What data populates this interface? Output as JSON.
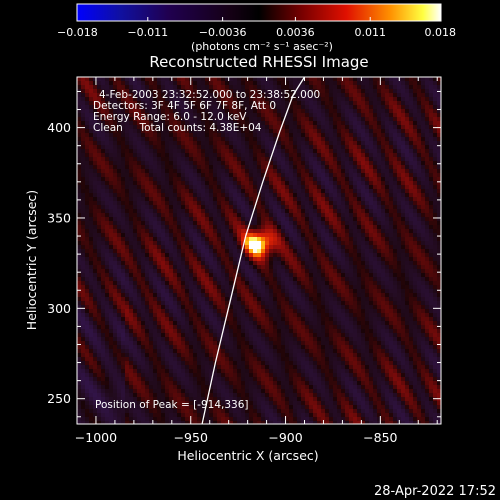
{
  "chart_data": {
    "type": "heatmap",
    "title": "Reconstructed RHESSI Image",
    "xlabel": "Heliocentric X (arcsec)",
    "ylabel": "Heliocentric Y (arcsec)",
    "xlim": [
      -1010,
      -818
    ],
    "ylim": [
      236,
      428
    ],
    "x_ticks": [
      -1000,
      -950,
      -900,
      -850
    ],
    "x_tick_labels": [
      "−1000",
      "−950",
      "−900",
      "−850"
    ],
    "y_ticks": [
      250,
      300,
      350,
      400
    ],
    "y_tick_labels": [
      "250",
      "300",
      "350",
      "400"
    ],
    "colorbar": {
      "ticks": [
        -0.018,
        -0.011,
        -0.0036,
        0.0036,
        0.011,
        0.018
      ],
      "tick_labels": [
        "−0.018",
        "−0.011",
        "−0.0036",
        "0.0036",
        "0.011",
        "0.018"
      ],
      "range": [
        -0.018,
        0.018
      ],
      "unit_label": "(photons cm⁻² s⁻¹ asec⁻²)",
      "colormap": "idl-blue-black-red-yellow-white"
    },
    "info_lines": [
      "4-Feb-2003 23:32:52.000 to 23:38:52.000",
      "Detectors: 3F 4F 5F 6F 7F 8F, Att 0",
      "Energy Range: 6.0 - 12.0 keV",
      "Clean     Total counts: 4.38E+04"
    ],
    "peak": {
      "x": -914,
      "y": 336,
      "label": "Position of Peak = [-914,336]"
    },
    "limb_curve": {
      "x": [
        -944,
        -937,
        -929,
        -921,
        -912,
        -903,
        -896,
        -890
      ],
      "y": [
        236,
        270,
        305,
        340,
        370,
        398,
        418,
        428
      ]
    },
    "grid": false
  },
  "footer": {
    "timestamp": "28-Apr-2022 17:52"
  },
  "colors": {
    "background": "#000000",
    "foreground": "#ffffff",
    "limb": "#ffffff"
  }
}
